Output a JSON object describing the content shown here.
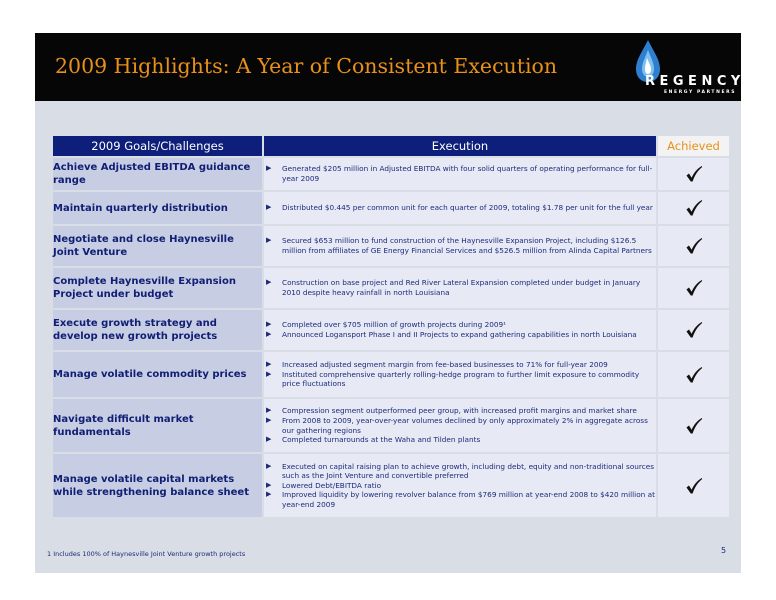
{
  "title": "2009 Highlights: A Year of Consistent Execution",
  "logo": {
    "word": "REGENCY",
    "subtitle": "ENERGY PARTNERS",
    "icon": "flame-drop-icon"
  },
  "columns": {
    "goals": "2009 Goals/Challenges",
    "execution": "Execution",
    "achieved": "Achieved"
  },
  "rows": [
    {
      "goal": "Achieve Adjusted EBITDA guidance range",
      "points": [
        "Generated $205 million in Adjusted EBITDA with four solid quarters of operating performance for full-year 2009"
      ],
      "achieved": true
    },
    {
      "goal": "Maintain quarterly distribution",
      "points": [
        "Distributed $0.445 per common unit for each quarter of 2009, totaling $1.78 per unit for the full year"
      ],
      "achieved": true
    },
    {
      "goal": "Negotiate and close Haynesville Joint Venture",
      "points": [
        "Secured $653 million to fund construction of the Haynesville Expansion Project, including $126.5 million from affiliates of GE Energy Financial Services and $526.5 million from Alinda Capital Partners"
      ],
      "achieved": true
    },
    {
      "goal": "Complete Haynesville Expansion Project under budget",
      "points": [
        "Construction on base project and Red River Lateral Expansion completed under budget in January 2010 despite heavy rainfall in north Louisiana"
      ],
      "achieved": true
    },
    {
      "goal": "Execute growth strategy and develop new growth projects",
      "points": [
        "Completed over $705 million of growth projects during 2009¹",
        "Announced Logansport Phase I and II Projects to expand gathering capabilities in north Louisiana"
      ],
      "achieved": true
    },
    {
      "goal": "Manage volatile commodity prices",
      "points": [
        "Increased adjusted segment margin from fee-based businesses to 71% for full-year 2009",
        "Instituted comprehensive quarterly rolling-hedge program to further limit exposure to commodity price fluctuations"
      ],
      "achieved": true
    },
    {
      "goal": "Navigate difficult market fundamentals",
      "points": [
        "Compression segment outperformed peer group, with increased profit margins and market share",
        "From 2008 to 2009, year-over-year volumes declined by only approximately 2% in aggregate across our gathering regions",
        "Completed turnarounds at the Waha and Tilden plants"
      ],
      "achieved": true
    },
    {
      "goal": "Manage volatile capital markets while strengthening balance sheet",
      "points": [
        "Executed on capital raising plan to achieve growth, including debt, equity and non-traditional sources such as the Joint Venture and convertible preferred",
        "Lowered Debt/EBITDA ratio",
        "Improved liquidity by lowering revolver balance from $769 million at year-end 2008 to $420 million at year-end 2009"
      ],
      "achieved": true
    }
  ],
  "footnote": "1  Includes 100% of Haynesville Joint Venture growth projects",
  "page_number": "5",
  "colors": {
    "header_bg": "#060606",
    "title": "#e8901a",
    "table_header": "#0d1f7a",
    "goal_cell": "#c7cde3",
    "exec_cell": "#e7eaf4",
    "text": "#1c2a7a"
  }
}
